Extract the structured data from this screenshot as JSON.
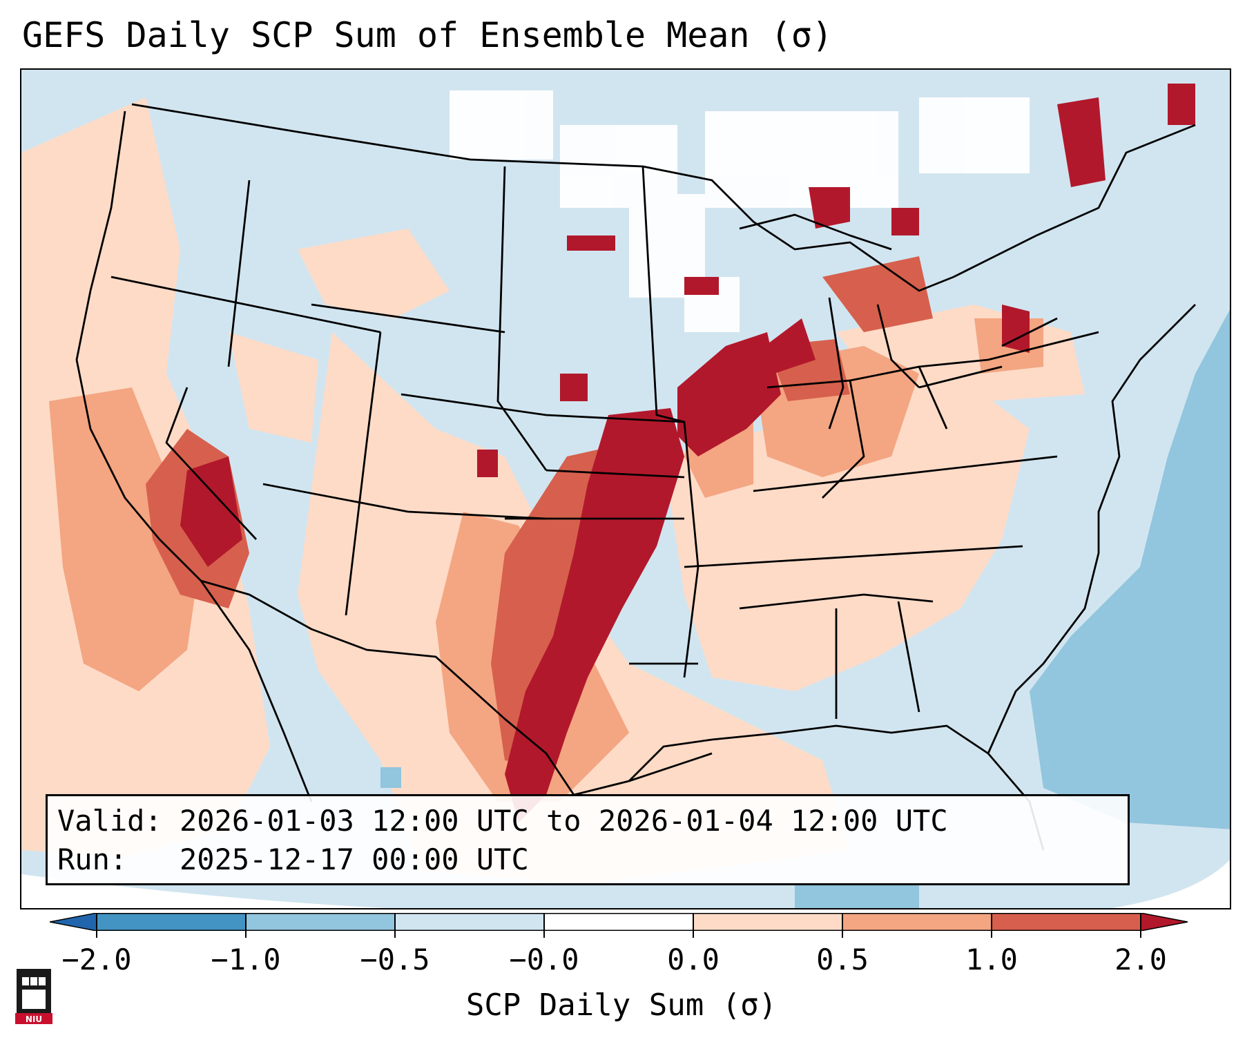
{
  "title": "GEFS Daily SCP Sum of Ensemble Mean (σ)",
  "info_box": {
    "valid_label": "Valid:",
    "valid_value": "2026-01-03 12:00 UTC to 2026-01-04 12:00 UTC",
    "run_label": "Run:",
    "run_value": "2025-12-17 00:00 UTC"
  },
  "colorbar": {
    "label": "SCP Daily Sum (σ)",
    "ticks": [
      "−2.0",
      "−1.0",
      "−0.5",
      "−0.0",
      "0.0",
      "0.5",
      "1.0",
      "2.0"
    ],
    "bins": [
      {
        "range": "< -2.0",
        "color": "#2166ac"
      },
      {
        "range": "-2.0 to -1.0",
        "color": "#4393c3"
      },
      {
        "range": "-1.0 to -0.5",
        "color": "#92c5de"
      },
      {
        "range": "-0.5 to -0.0",
        "color": "#d1e5f0"
      },
      {
        "range": "-0.0 to 0.0",
        "color": "#ffffff"
      },
      {
        "range": "0.0 to 0.5",
        "color": "#fddbc7"
      },
      {
        "range": "0.5 to 1.0",
        "color": "#f4a582"
      },
      {
        "range": "1.0 to 2.0",
        "color": "#d6604d"
      },
      {
        "range": "> 2.0",
        "color": "#b2182b"
      }
    ]
  },
  "map": {
    "region": "Continental United States",
    "highlights": [
      {
        "area": "Southern Plains (Texas–Oklahoma–Kansas)",
        "sigma": ">2.0"
      },
      {
        "area": "Upper Mississippi Valley (Iowa–Wisconsin–Illinois)",
        "sigma": ">2.0"
      },
      {
        "area": "Central California / Nevada",
        "sigma": "1.0 to 2.0"
      },
      {
        "area": "Western Atlantic",
        "sigma": "-1.0 to -0.5"
      }
    ]
  },
  "logo": {
    "text": "NIU"
  }
}
